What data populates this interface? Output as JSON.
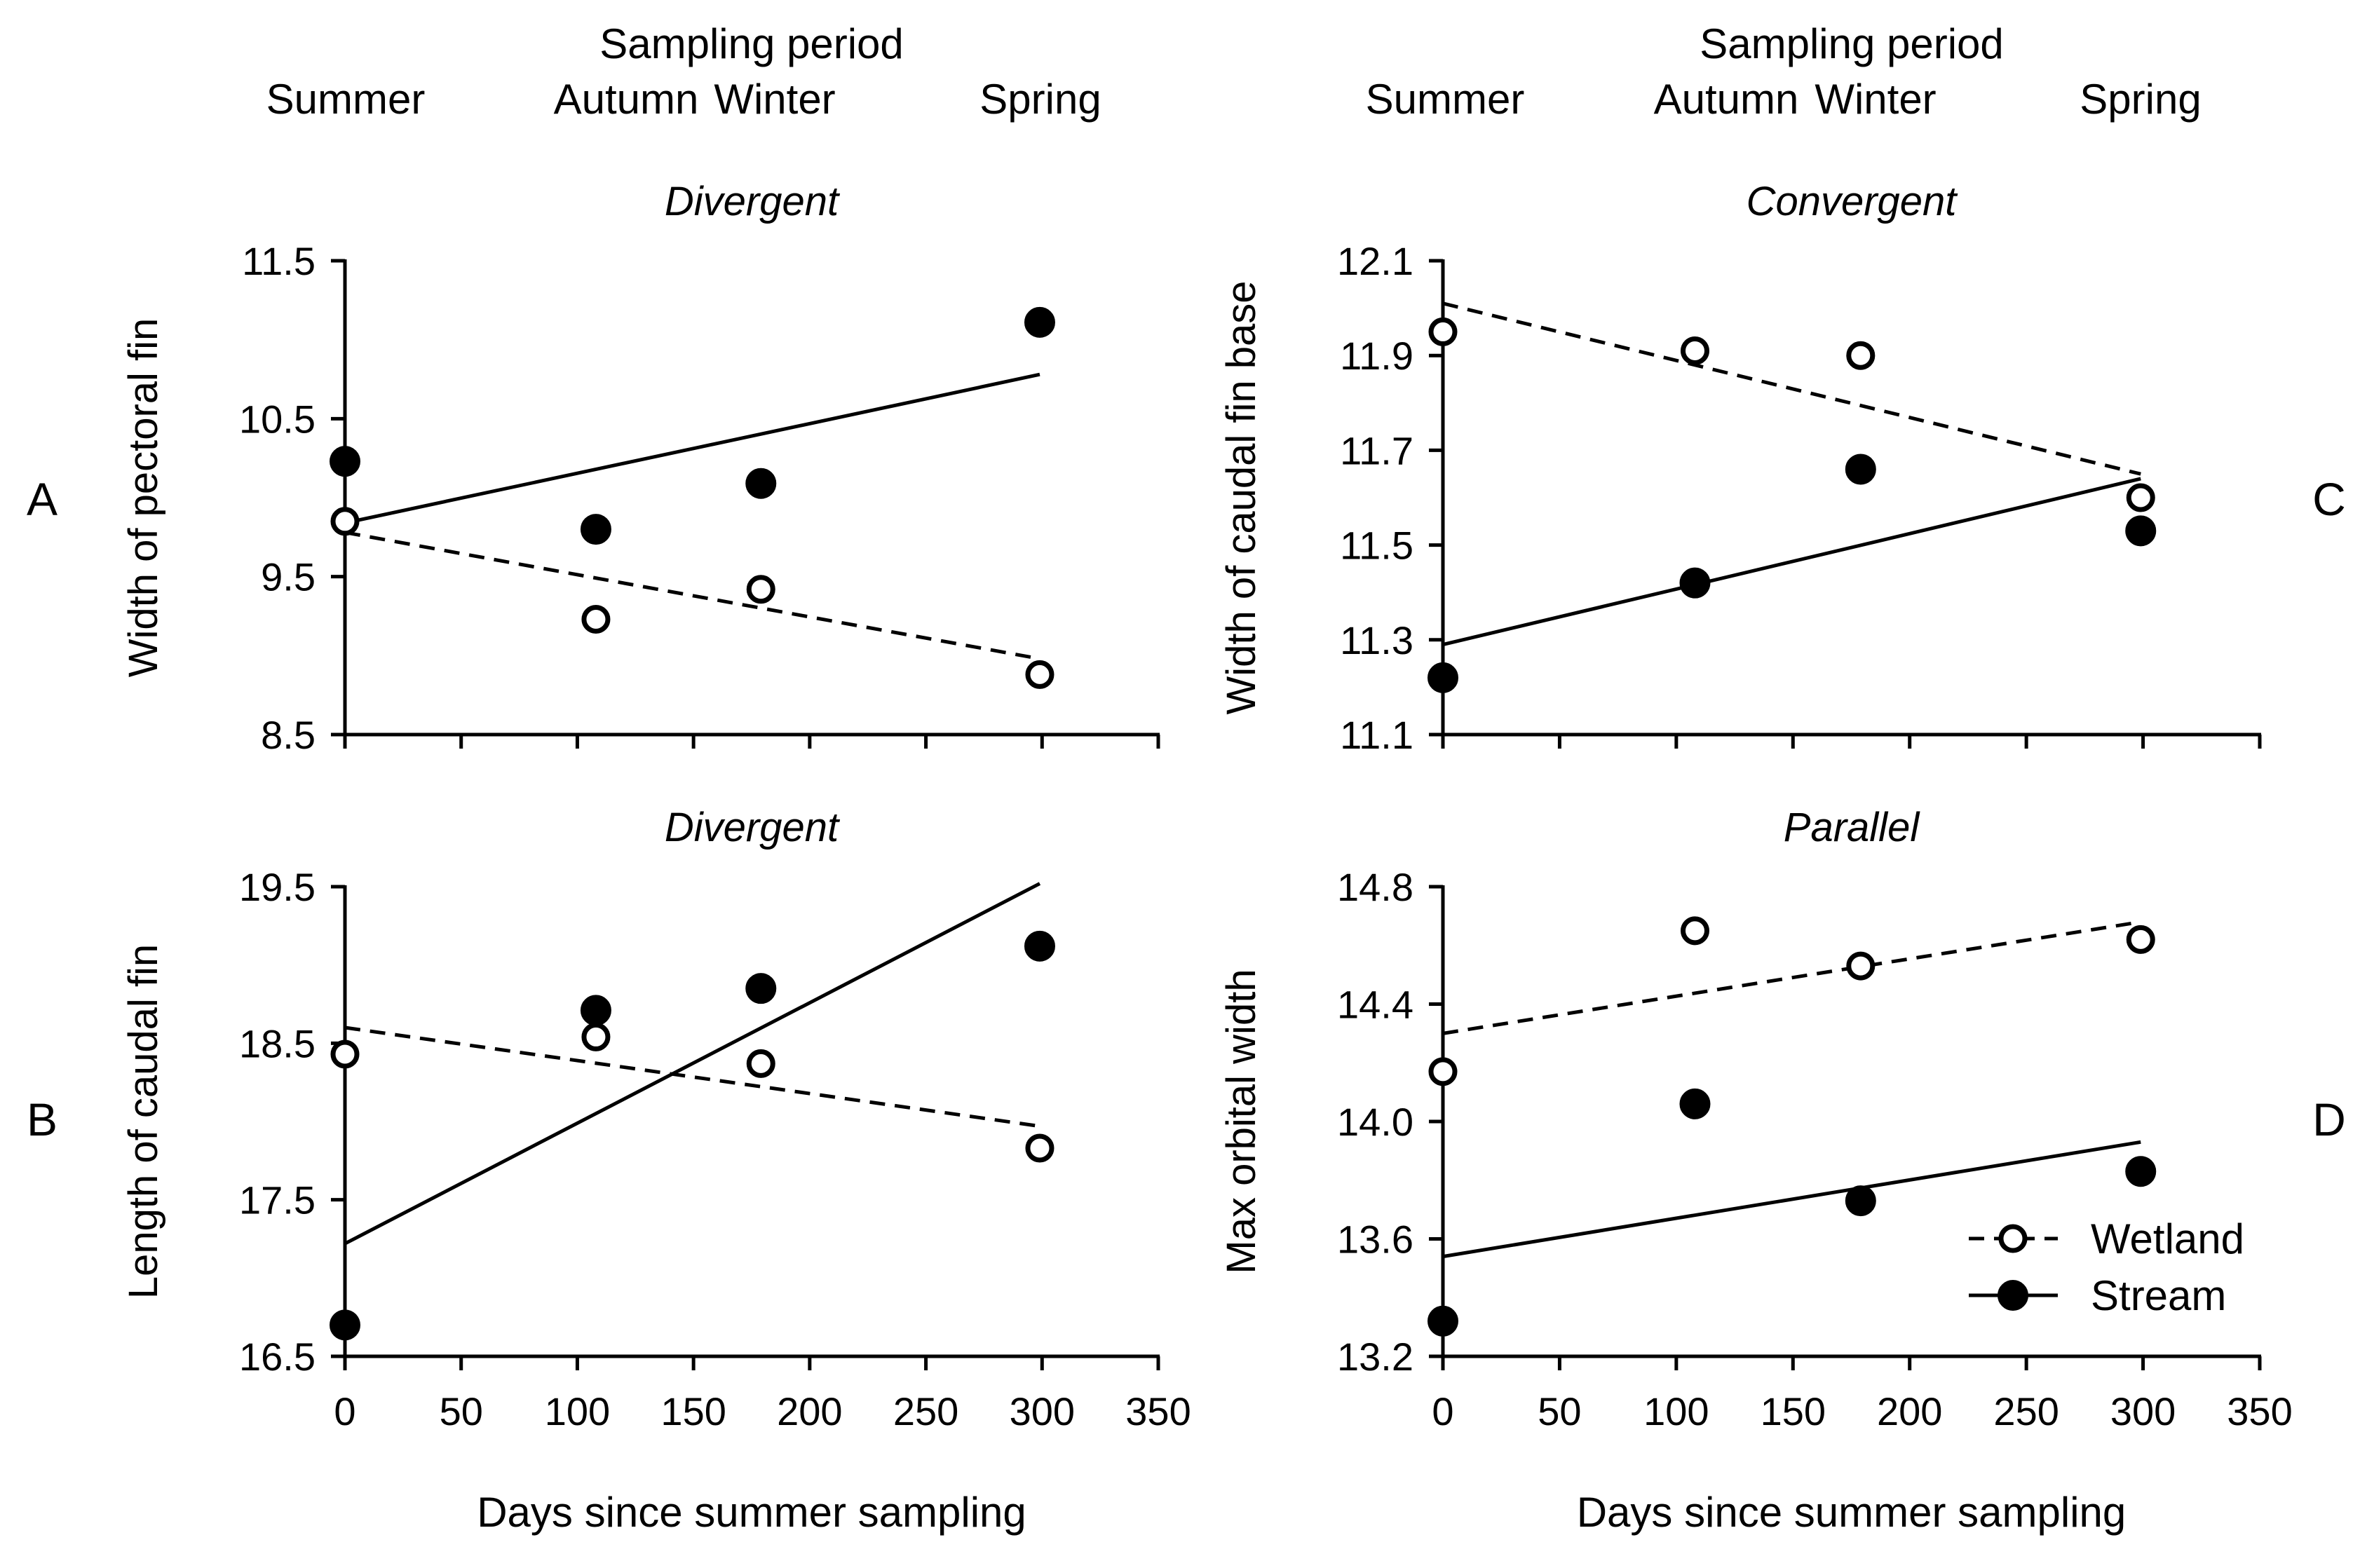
{
  "figure": {
    "top_title": "Sampling period",
    "season_labels": [
      "Summer",
      "Autumn",
      "Winter",
      "Spring"
    ],
    "xlabel": "Days since summer sampling",
    "legend": {
      "wetland": "Wetland",
      "stream": "Stream"
    }
  },
  "chart_data": [
    {
      "type": "scatter",
      "panel_letter": "A",
      "title": "Divergent",
      "xlabel": "",
      "ylabel": "Width of pectoral fin",
      "xlim": [
        0,
        350
      ],
      "ylim": [
        8.5,
        11.5
      ],
      "x_ticks": [],
      "y_ticks": [
        "8.5",
        "9.5",
        "10.5",
        "11.5"
      ],
      "series": [
        {
          "name": "Wetland",
          "marker": "open-circle",
          "line_style": "dashed",
          "points": [
            [
              0,
              9.85
            ],
            [
              108,
              9.23
            ],
            [
              179,
              9.42
            ],
            [
              299,
              8.88
            ]
          ],
          "fit_line": [
            [
              0,
              9.78
            ],
            [
              299,
              8.98
            ]
          ]
        },
        {
          "name": "Stream",
          "marker": "filled-circle",
          "line_style": "solid",
          "points": [
            [
              0,
              10.23
            ],
            [
              108,
              9.8
            ],
            [
              179,
              10.09
            ],
            [
              299,
              11.11
            ]
          ],
          "fit_line": [
            [
              0,
              9.84
            ],
            [
              299,
              10.78
            ]
          ]
        }
      ]
    },
    {
      "type": "scatter",
      "panel_letter": "B",
      "title": "Divergent",
      "xlabel": "Days since summer sampling",
      "ylabel": "Length of caudal fin",
      "xlim": [
        0,
        350
      ],
      "ylim": [
        16.5,
        19.5
      ],
      "x_ticks": [
        "0",
        "50",
        "100",
        "150",
        "200",
        "250",
        "300",
        "350"
      ],
      "y_ticks": [
        "16.5",
        "17.5",
        "18.5",
        "19.5"
      ],
      "series": [
        {
          "name": "Wetland",
          "marker": "open-circle",
          "line_style": "dashed",
          "points": [
            [
              0,
              18.43
            ],
            [
              108,
              18.54
            ],
            [
              179,
              18.37
            ],
            [
              299,
              17.83
            ]
          ],
          "fit_line": [
            [
              0,
              18.6
            ],
            [
              299,
              17.97
            ]
          ]
        },
        {
          "name": "Stream",
          "marker": "filled-circle",
          "line_style": "solid",
          "points": [
            [
              0,
              16.7
            ],
            [
              108,
              18.71
            ],
            [
              179,
              18.85
            ],
            [
              299,
              19.12
            ]
          ],
          "fit_line": [
            [
              0,
              17.22
            ],
            [
              299,
              19.52
            ]
          ]
        }
      ]
    },
    {
      "type": "scatter",
      "panel_letter": "C",
      "title": "Convergent",
      "xlabel": "",
      "ylabel": "Width of caudal fin base",
      "xlim": [
        0,
        350
      ],
      "ylim": [
        11.1,
        12.1
      ],
      "x_ticks": [],
      "y_ticks": [
        "11.1",
        "11.3",
        "11.5",
        "11.7",
        "11.9",
        "12.1"
      ],
      "series": [
        {
          "name": "Wetland",
          "marker": "open-circle",
          "line_style": "dashed",
          "points": [
            [
              0,
              11.95
            ],
            [
              108,
              11.91
            ],
            [
              179,
              11.9
            ],
            [
              299,
              11.6
            ]
          ],
          "fit_line": [
            [
              0,
              12.01
            ],
            [
              299,
              11.65
            ]
          ]
        },
        {
          "name": "Stream",
          "marker": "filled-circle",
          "line_style": "solid",
          "points": [
            [
              0,
              11.22
            ],
            [
              108,
              11.42
            ],
            [
              179,
              11.66
            ],
            [
              299,
              11.53
            ]
          ],
          "fit_line": [
            [
              0,
              11.29
            ],
            [
              299,
              11.64
            ]
          ]
        }
      ]
    },
    {
      "type": "scatter",
      "panel_letter": "D",
      "title": "Parallel",
      "xlabel": "Days since summer sampling",
      "ylabel": "Max orbital width",
      "xlim": [
        0,
        350
      ],
      "ylim": [
        13.2,
        14.8
      ],
      "x_ticks": [
        "0",
        "50",
        "100",
        "150",
        "200",
        "250",
        "300",
        "350"
      ],
      "y_ticks": [
        "13.2",
        "13.6",
        "14.0",
        "14.4",
        "14.8"
      ],
      "series": [
        {
          "name": "Wetland",
          "marker": "open-circle",
          "line_style": "dashed",
          "points": [
            [
              0,
              14.17
            ],
            [
              108,
              14.65
            ],
            [
              179,
              14.53
            ],
            [
              299,
              14.62
            ]
          ],
          "fit_line": [
            [
              0,
              14.3
            ],
            [
              299,
              14.68
            ]
          ]
        },
        {
          "name": "Stream",
          "marker": "filled-circle",
          "line_style": "solid",
          "points": [
            [
              0,
              13.32
            ],
            [
              108,
              14.06
            ],
            [
              179,
              13.73
            ],
            [
              299,
              13.83
            ]
          ],
          "fit_line": [
            [
              0,
              13.54
            ],
            [
              299,
              13.93
            ]
          ]
        }
      ]
    }
  ]
}
